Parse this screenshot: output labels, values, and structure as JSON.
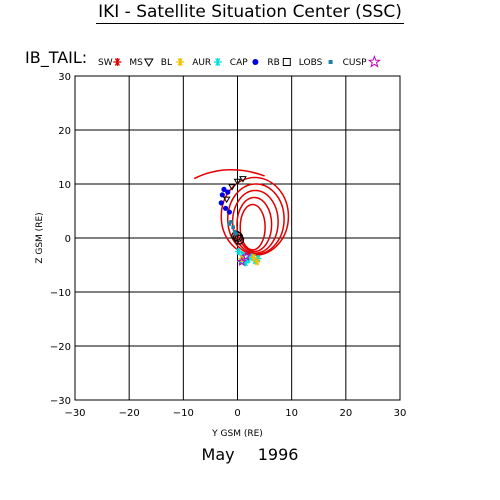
{
  "header": {
    "title": "IKI - Satellite Situation Center (SSC)",
    "subtitle": "IB_TAIL:"
  },
  "footer": {
    "month": "May",
    "year": "1996"
  },
  "legend": [
    {
      "label": "SW",
      "symbol": "asterisk",
      "color": "#e00000"
    },
    {
      "label": "MS",
      "symbol": "triangle-down",
      "color": "#000000"
    },
    {
      "label": "BL",
      "symbol": "asterisk",
      "color": "#f0c000"
    },
    {
      "label": "AUR",
      "symbol": "asterisk",
      "color": "#00e0e0"
    },
    {
      "label": "CAP",
      "symbol": "dot",
      "color": "#0000e0"
    },
    {
      "label": "RB",
      "symbol": "square",
      "color": "#000000"
    },
    {
      "label": "LOBS",
      "symbol": "small-square",
      "color": "#2080a0"
    },
    {
      "label": "CUSP",
      "symbol": "star",
      "color": "#c000c0"
    }
  ],
  "chart_data": {
    "type": "line",
    "xlabel": "Y GSM (RE)",
    "ylabel": "Z GSM (RE)",
    "xlim": [
      -30,
      30
    ],
    "ylim": [
      -30,
      30
    ],
    "xticks": [
      -30,
      -20,
      -10,
      0,
      10,
      20,
      30
    ],
    "yticks": [
      -30,
      -20,
      -10,
      0,
      10,
      20,
      30
    ],
    "grid": true,
    "series": [
      {
        "region": "MS",
        "color": "#e00000",
        "loops": [
          {
            "cx": 3.2,
            "cy": 4.0,
            "rx": 6.2,
            "ry": 7.2
          },
          {
            "cx": 3.4,
            "cy": 3.5,
            "rx": 5.2,
            "ry": 6.5
          },
          {
            "cx": 3.3,
            "cy": 3.0,
            "rx": 4.2,
            "ry": 5.8
          },
          {
            "cx": 3.1,
            "cy": 2.5,
            "rx": 3.2,
            "ry": 5.0
          },
          {
            "cx": 2.8,
            "cy": 2.0,
            "rx": 2.3,
            "ry": 4.2
          }
        ],
        "arc": {
          "from": [
            -8.0,
            11.0
          ],
          "via": [
            -2.0,
            14.0
          ],
          "to": [
            5.0,
            11.5
          ]
        }
      },
      {
        "region": "RB",
        "color": "#000000",
        "points": [
          [
            0.1,
            0.2
          ],
          [
            0.3,
            -0.3
          ],
          [
            -0.2,
            0.4
          ]
        ]
      },
      {
        "region": "CAP",
        "color": "#0000e0",
        "points": [
          [
            -2.5,
            9.0
          ],
          [
            -1.8,
            8.5
          ],
          [
            -3.0,
            6.5
          ],
          [
            -2.2,
            5.5
          ],
          [
            -1.5,
            4.8
          ],
          [
            -2.8,
            8.0
          ]
        ]
      },
      {
        "region": "AUR",
        "color": "#00e0e0",
        "points": [
          [
            0.2,
            -2.5
          ],
          [
            1.0,
            -3.2
          ],
          [
            2.0,
            -4.0
          ],
          [
            3.2,
            -4.2
          ],
          [
            1.5,
            -4.6
          ],
          [
            2.6,
            -3.5
          ],
          [
            0.6,
            -4.3
          ],
          [
            3.8,
            -3.8
          ]
        ]
      },
      {
        "region": "BL",
        "color": "#f0c000",
        "points": [
          [
            3.0,
            -3.6
          ],
          [
            3.6,
            -4.4
          ],
          [
            0.8,
            -3.8
          ]
        ]
      },
      {
        "region": "LOBS",
        "color": "#2080a0",
        "points": [
          [
            -1.2,
            3.0
          ],
          [
            -0.8,
            2.0
          ],
          [
            -0.5,
            1.2
          ],
          [
            -1.5,
            2.6
          ],
          [
            -0.3,
            0.8
          ]
        ]
      },
      {
        "region": "MS-BL",
        "color": "#000000",
        "points": [
          [
            -2.0,
            7.2
          ],
          [
            -1.0,
            9.5
          ],
          [
            0.0,
            10.5
          ],
          [
            1.0,
            11.0
          ]
        ]
      },
      {
        "region": "CUSP",
        "color": "#c000c0",
        "points": [
          [
            0.8,
            -4.4
          ],
          [
            1.6,
            -3.4
          ]
        ]
      }
    ]
  }
}
